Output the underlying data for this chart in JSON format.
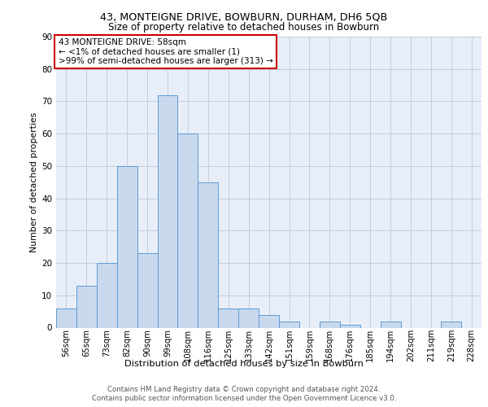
{
  "title1": "43, MONTEIGNE DRIVE, BOWBURN, DURHAM, DH6 5QB",
  "title2": "Size of property relative to detached houses in Bowburn",
  "xlabel": "Distribution of detached houses by size in Bowburn",
  "ylabel": "Number of detached properties",
  "footnote1": "Contains HM Land Registry data © Crown copyright and database right 2024.",
  "footnote2": "Contains public sector information licensed under the Open Government Licence v3.0.",
  "annotation_line1": "43 MONTEIGNE DRIVE: 58sqm",
  "annotation_line2": "← <1% of detached houses are smaller (1)",
  "annotation_line3": ">99% of semi-detached houses are larger (313) →",
  "bar_labels": [
    "56sqm",
    "65sqm",
    "73sqm",
    "82sqm",
    "90sqm",
    "99sqm",
    "108sqm",
    "116sqm",
    "125sqm",
    "133sqm",
    "142sqm",
    "151sqm",
    "159sqm",
    "168sqm",
    "176sqm",
    "185sqm",
    "194sqm",
    "202sqm",
    "211sqm",
    "219sqm",
    "228sqm"
  ],
  "bar_values": [
    6,
    13,
    20,
    50,
    23,
    72,
    60,
    45,
    6,
    6,
    4,
    2,
    0,
    2,
    1,
    0,
    2,
    0,
    0,
    2,
    0
  ],
  "bar_color": "#c9d9ed",
  "bar_edge_color": "#5b9bd5",
  "annotation_box_edge_color": "#cc0000",
  "annotation_box_face_color": "#ffffff",
  "background_color": "#e8eef8",
  "ylim": [
    0,
    90
  ],
  "yticks": [
    0,
    10,
    20,
    30,
    40,
    50,
    60,
    70,
    80,
    90
  ]
}
